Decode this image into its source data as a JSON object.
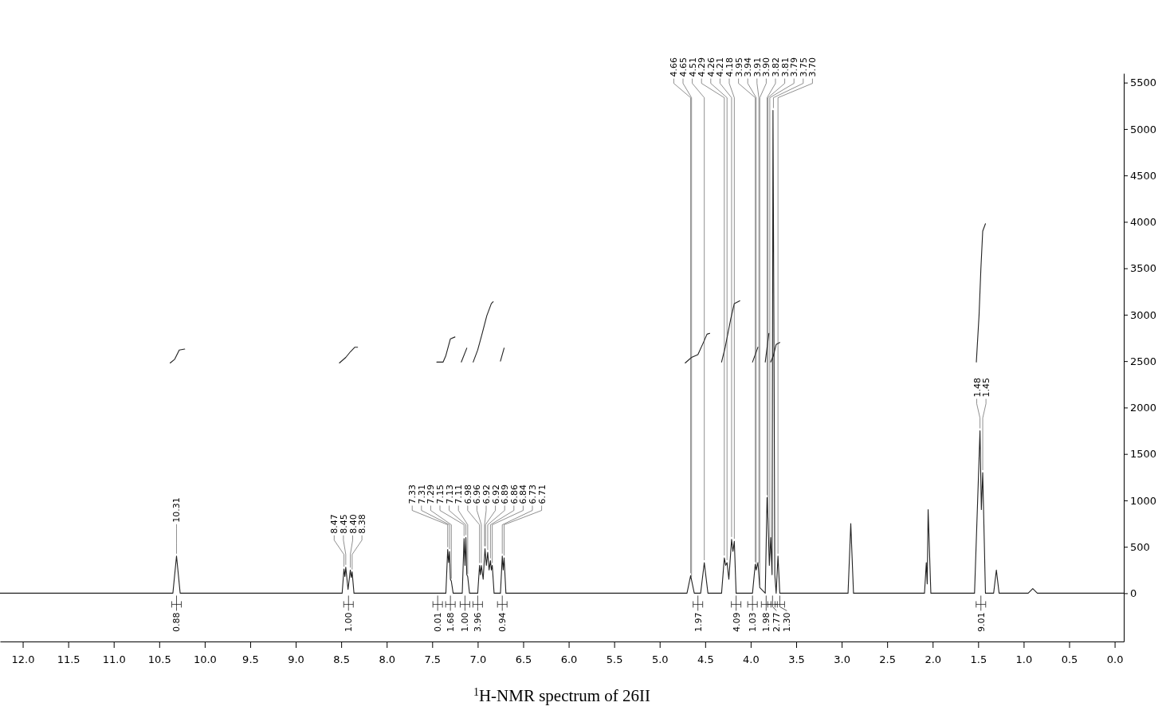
{
  "chart_data": {
    "type": "line",
    "title": "$^{1}$H-NMR spectrum of 26II",
    "xlim": [
      12.25,
      -0.1
    ],
    "xticks": [
      {
        "value": 12,
        "label": "12.0"
      },
      11.5,
      {
        "value": 11,
        "label": "11.0"
      },
      10.5,
      {
        "value": 10,
        "label": "10.0"
      },
      9.5,
      {
        "value": 9,
        "label": "9.0"
      },
      8.5,
      {
        "value": 8,
        "label": "8.0"
      },
      7.5,
      {
        "value": 7,
        "label": "7.0"
      },
      6.5,
      {
        "value": 6,
        "label": "6.0"
      },
      5.5,
      {
        "value": 5,
        "label": "5.0"
      },
      4.5,
      {
        "value": 4,
        "label": "4.0"
      },
      3.5,
      {
        "value": 3,
        "label": "3.0"
      },
      2.5,
      {
        "value": 2,
        "label": "2.0"
      },
      1.5,
      {
        "value": 1,
        "label": "1.0"
      },
      0.5,
      {
        "value": 0,
        "label": "0.0"
      }
    ],
    "ylim": [
      -520,
      5600
    ],
    "yticks": [
      0,
      500,
      1000,
      1500,
      2000,
      2500,
      3000,
      3500,
      4000,
      4500,
      5000,
      5500
    ],
    "series": [
      {
        "color": "#222222",
        "x": [
          12.25,
          10.35,
          10.31,
          10.27,
          8.49,
          8.47,
          8.46,
          8.45,
          8.425,
          8.4,
          8.39,
          8.38,
          8.36,
          7.35,
          7.33,
          7.32,
          7.31,
          7.3,
          7.29,
          7.27,
          7.17,
          7.15,
          7.14,
          7.13,
          7.12,
          7.11,
          7.09,
          7.0,
          6.98,
          6.97,
          6.96,
          6.94,
          6.92,
          6.905,
          6.89,
          6.875,
          6.86,
          6.85,
          6.84,
          6.82,
          6.75,
          6.73,
          6.72,
          6.71,
          6.69,
          4.7,
          4.66,
          4.62,
          4.55,
          4.51,
          4.47,
          4.32,
          4.29,
          4.275,
          4.26,
          4.24,
          4.21,
          4.195,
          4.18,
          4.16,
          3.98,
          3.95,
          3.94,
          3.92,
          3.9,
          3.84,
          3.82,
          3.81,
          3.795,
          3.78,
          3.765,
          3.755,
          3.745,
          3.735,
          3.72,
          3.7,
          3.68,
          3.55,
          2.93,
          2.9,
          2.87,
          2.09,
          2.07,
          2.06,
          2.05,
          2.02,
          1.54,
          1.48,
          1.465,
          1.45,
          1.42,
          1.33,
          1.3,
          1.27,
          0.95,
          0.9,
          0.85,
          -0.1
        ],
        "values": [
          0,
          0,
          400,
          0,
          0,
          260,
          180,
          280,
          40,
          250,
          170,
          230,
          0,
          0,
          470,
          330,
          450,
          150,
          130,
          0,
          0,
          590,
          300,
          600,
          200,
          180,
          0,
          0,
          300,
          200,
          300,
          150,
          480,
          300,
          440,
          250,
          350,
          250,
          300,
          0,
          0,
          400,
          250,
          380,
          0,
          0,
          190,
          0,
          0,
          330,
          0,
          0,
          380,
          300,
          330,
          150,
          580,
          450,
          560,
          0,
          0,
          310,
          250,
          330,
          60,
          0,
          1030,
          800,
          300,
          600,
          200,
          5200,
          2950,
          200,
          0,
          400,
          0,
          0,
          0,
          750,
          0,
          0,
          330,
          100,
          900,
          0,
          0,
          1750,
          900,
          1300,
          0,
          0,
          250,
          0,
          0,
          50,
          0,
          0
        ]
      },
      {
        "color": "#222222",
        "x": [
          10.38,
          10.33,
          10.28,
          10.22
        ],
        "values": [
          2480,
          2520,
          2620,
          2630
        ]
      },
      {
        "color": "#222222",
        "x": [
          8.52,
          8.45,
          8.4,
          8.35,
          8.32
        ],
        "values": [
          2480,
          2540,
          2600,
          2650,
          2650
        ]
      },
      {
        "color": "#222222",
        "x": [
          7.45,
          7.38,
          7.35,
          7.3,
          7.25
        ],
        "values": [
          2490,
          2490,
          2560,
          2740,
          2760
        ]
      },
      {
        "color": "#222222",
        "x": [
          7.18,
          7.12
        ],
        "values": [
          2490,
          2640
        ]
      },
      {
        "color": "#222222",
        "x": [
          7.05,
          7.0,
          6.95,
          6.9,
          6.85,
          6.83
        ],
        "values": [
          2490,
          2620,
          2800,
          2990,
          3120,
          3140
        ]
      },
      {
        "color": "#222222",
        "x": [
          6.75,
          6.71
        ],
        "values": [
          2500,
          2640
        ]
      },
      {
        "color": "#222222",
        "x": [
          4.72,
          4.65,
          4.58,
          4.52,
          4.48,
          4.45
        ],
        "values": [
          2480,
          2540,
          2570,
          2700,
          2790,
          2800
        ]
      },
      {
        "color": "#222222",
        "x": [
          4.32,
          4.28,
          4.22,
          4.18,
          4.12
        ],
        "values": [
          2490,
          2650,
          2950,
          3120,
          3150
        ]
      },
      {
        "color": "#222222",
        "x": [
          3.98,
          3.92
        ],
        "values": [
          2490,
          2650
        ]
      },
      {
        "color": "#222222",
        "x": [
          3.84,
          3.8
        ],
        "values": [
          2490,
          2800
        ]
      },
      {
        "color": "#222222",
        "x": [
          3.78,
          3.75,
          3.72,
          3.68
        ],
        "values": [
          2490,
          2560,
          2680,
          2700
        ]
      },
      {
        "color": "#222222",
        "x": [
          1.52,
          1.49,
          1.47,
          1.45,
          1.42
        ],
        "values": [
          2490,
          3000,
          3500,
          3900,
          3980
        ]
      }
    ],
    "annotations": [
      {
        "text": "10.31",
        "x": 10.31,
        "y": 400
      },
      {
        "text": "8.47",
        "x": 8.47,
        "y": 260
      },
      {
        "text": "8.45",
        "x": 8.45,
        "y": 280
      },
      {
        "text": "8.40",
        "x": 8.4,
        "y": 250
      },
      {
        "text": "8.38",
        "x": 8.38,
        "y": 230
      },
      {
        "text": "7.33",
        "x": 7.33,
        "y": 470
      },
      {
        "text": "7.31",
        "x": 7.31,
        "y": 450
      },
      {
        "text": "7.29",
        "x": 7.29,
        "y": 130
      },
      {
        "text": "7.15",
        "x": 7.15,
        "y": 590
      },
      {
        "text": "7.13",
        "x": 7.13,
        "y": 600
      },
      {
        "text": "7.11",
        "x": 7.11,
        "y": 180
      },
      {
        "text": "6.98",
        "x": 6.98,
        "y": 300
      },
      {
        "text": "6.96",
        "x": 6.96,
        "y": 300
      },
      {
        "text": "6.92",
        "x": 6.925,
        "y": 480
      },
      {
        "text": "6.92",
        "x": 6.915,
        "y": 480
      },
      {
        "text": "6.89",
        "x": 6.89,
        "y": 440
      },
      {
        "text": "6.86",
        "x": 6.86,
        "y": 350
      },
      {
        "text": "6.84",
        "x": 6.84,
        "y": 300
      },
      {
        "text": "6.73",
        "x": 6.73,
        "y": 400
      },
      {
        "text": "6.71",
        "x": 6.71,
        "y": 380
      },
      {
        "text": "4.66",
        "x": 4.66,
        "y": 190
      },
      {
        "text": "4.65",
        "x": 4.65,
        "y": 150
      },
      {
        "text": "4.51",
        "x": 4.51,
        "y": 330
      },
      {
        "text": "4.29",
        "x": 4.29,
        "y": 380
      },
      {
        "text": "4.26",
        "x": 4.26,
        "y": 330
      },
      {
        "text": "4.21",
        "x": 4.21,
        "y": 580
      },
      {
        "text": "4.18",
        "x": 4.18,
        "y": 560
      },
      {
        "text": "3.95",
        "x": 3.95,
        "y": 310
      },
      {
        "text": "3.94",
        "x": 3.94,
        "y": 250
      },
      {
        "text": "3.91",
        "x": 3.91,
        "y": 300
      },
      {
        "text": "3.90",
        "x": 3.9,
        "y": 60
      },
      {
        "text": "3.82",
        "x": 3.82,
        "y": 1030
      },
      {
        "text": "3.81",
        "x": 3.81,
        "y": 800
      },
      {
        "text": "3.79",
        "x": 3.79,
        "y": 400
      },
      {
        "text": "3.75",
        "x": 3.75,
        "y": 5200
      },
      {
        "text": "3.70",
        "x": 3.7,
        "y": 400
      },
      {
        "text": "1.48",
        "x": 1.48,
        "y": 1750
      },
      {
        "text": "1.45",
        "x": 1.45,
        "y": 1300
      },
      {
        "text": "0.88",
        "x": 10.31,
        "y": 0
      },
      {
        "text": "1.00",
        "x": 8.42,
        "y": 0
      },
      {
        "text": "0.01",
        "x": 7.44,
        "y": 0
      },
      {
        "text": "1.68",
        "x": 7.3,
        "y": 0
      },
      {
        "text": "1.00",
        "x": 7.14,
        "y": 0
      },
      {
        "text": "3.96",
        "x": 7.0,
        "y": 0
      },
      {
        "text": "0.94",
        "x": 6.73,
        "y": 0
      },
      {
        "text": "1.97",
        "x": 4.58,
        "y": 0
      },
      {
        "text": "4.09",
        "x": 4.16,
        "y": 0
      },
      {
        "text": "1.03",
        "x": 3.98,
        "y": 0
      },
      {
        "text": "1.98",
        "x": 3.83,
        "y": 0
      },
      {
        "text": "2.77",
        "x": 3.76,
        "y": 0
      },
      {
        "text": "1.30",
        "x": 3.68,
        "y": 0
      },
      {
        "text": "9.01",
        "x": 1.47,
        "y": 0
      }
    ]
  }
}
